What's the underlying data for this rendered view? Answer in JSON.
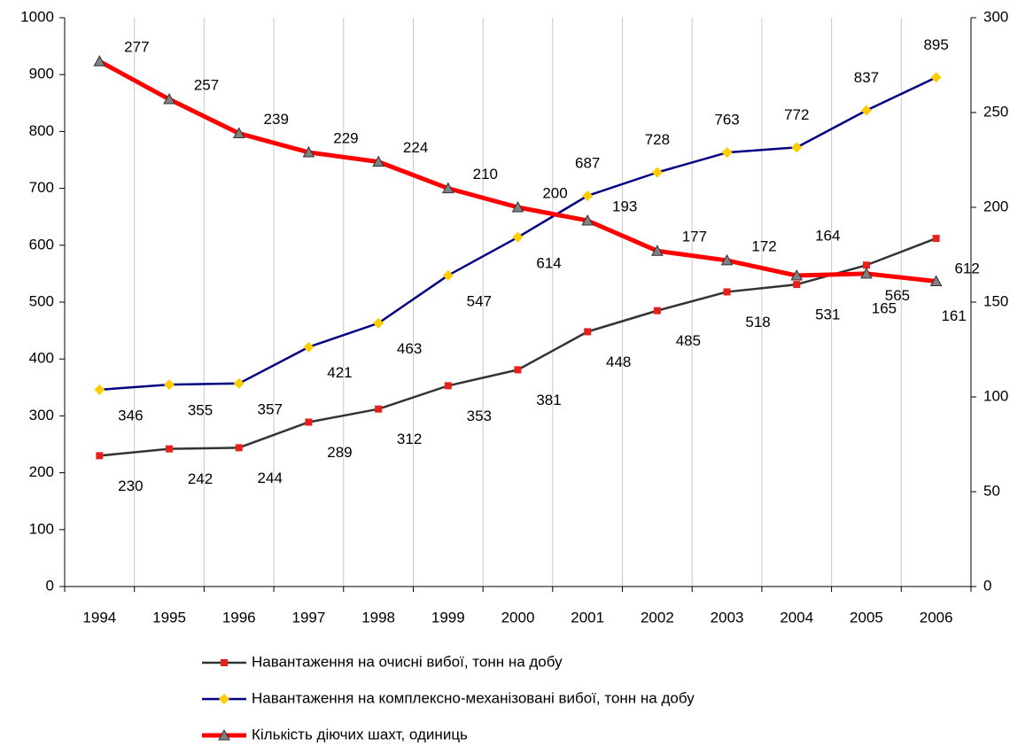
{
  "chart_data": {
    "type": "line",
    "categories": [
      "1994",
      "1995",
      "1996",
      "1997",
      "1998",
      "1999",
      "2000",
      "2001",
      "2002",
      "2003",
      "2004",
      "2005",
      "2006"
    ],
    "ylim": [
      0,
      1000
    ],
    "yticks": [
      0,
      100,
      200,
      300,
      400,
      500,
      600,
      700,
      800,
      900,
      1000
    ],
    "y2lim": [
      0,
      300
    ],
    "y2ticks": [
      0,
      50,
      100,
      150,
      200,
      250,
      300
    ],
    "grid": "vertical",
    "legend": "bottom",
    "series": [
      {
        "name": "Навантаження на очисні вибої, тонн на добу",
        "color": "#333333",
        "marker": "square",
        "marker_color": "#e8201c",
        "values": [
          230,
          242,
          244,
          289,
          312,
          353,
          381,
          448,
          485,
          518,
          531,
          565,
          612
        ]
      },
      {
        "name": "Навантаження на комплексно-механізовані вибої, тонн на добу",
        "color": "#000080",
        "marker": "diamond",
        "marker_color": "#ffcc00",
        "values": [
          346,
          355,
          357,
          421,
          463,
          547,
          614,
          687,
          728,
          763,
          772,
          837,
          895
        ]
      },
      {
        "name": "Кількість діючих шахт, одиниць",
        "color": "#ff0000",
        "marker": "triangle",
        "marker_color": "#808080",
        "axis": "y2",
        "values": [
          277,
          257,
          239,
          229,
          224,
          210,
          200,
          193,
          177,
          172,
          164,
          165,
          161
        ]
      }
    ]
  }
}
